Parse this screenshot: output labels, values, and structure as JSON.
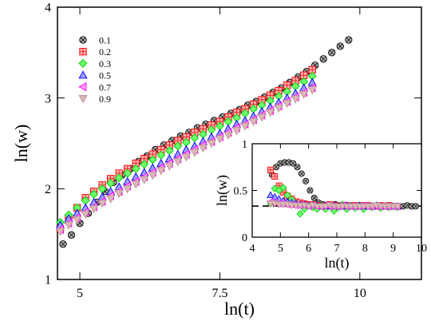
{
  "chart_data": [
    {
      "type": "scatter",
      "xlabel": "ln(t)",
      "ylabel": "ln(w)",
      "xlim": [
        4.6,
        11.1
      ],
      "ylim": [
        1.0,
        4.0
      ],
      "xticks": [
        5,
        7.5,
        10
      ],
      "xtick_labels": [
        "5",
        "7.5",
        "10"
      ],
      "yticks": [
        1,
        2,
        3,
        4
      ],
      "ytick_labels": [
        "1",
        "2",
        "3",
        "4"
      ],
      "grid": false,
      "legend_position": "top-left",
      "series": [
        {
          "name": "0.1",
          "marker": "circle-cross",
          "color": "#000000",
          "fill": "#b0b0b0",
          "x": [
            4.7,
            4.85,
            5.0,
            5.15,
            5.3,
            5.45,
            5.6,
            5.75,
            5.9,
            6.05,
            6.2,
            6.35,
            6.5,
            6.65,
            6.8,
            6.95,
            7.1,
            7.25,
            7.4,
            7.55,
            7.7,
            7.85,
            8.0,
            8.15,
            8.3,
            8.45,
            8.6,
            8.75,
            8.9,
            9.05,
            9.2,
            9.35,
            9.5,
            9.65,
            9.8
          ],
          "y": [
            1.39,
            1.49,
            1.62,
            1.73,
            1.85,
            1.97,
            2.07,
            2.15,
            2.22,
            2.3,
            2.36,
            2.43,
            2.48,
            2.53,
            2.58,
            2.62,
            2.67,
            2.71,
            2.75,
            2.79,
            2.83,
            2.87,
            2.92,
            2.96,
            3.01,
            3.06,
            3.11,
            3.17,
            3.23,
            3.29,
            3.36,
            3.43,
            3.5,
            3.57,
            3.64
          ]
        },
        {
          "name": "0.2",
          "marker": "square-cross",
          "color": "#ff0000",
          "fill": "#ffb0b0",
          "x": [
            4.65,
            4.8,
            4.95,
            5.1,
            5.25,
            5.4,
            5.55,
            5.7,
            5.85,
            6.0,
            6.15,
            6.3,
            6.45,
            6.6,
            6.75,
            6.9,
            7.05,
            7.2,
            7.35,
            7.5,
            7.65,
            7.8,
            7.95,
            8.1,
            8.25,
            8.4,
            8.55,
            8.7,
            8.85,
            9.0,
            9.15
          ],
          "y": [
            1.56,
            1.68,
            1.79,
            1.9,
            1.97,
            2.04,
            2.11,
            2.17,
            2.22,
            2.28,
            2.33,
            2.38,
            2.43,
            2.48,
            2.53,
            2.57,
            2.62,
            2.66,
            2.7,
            2.74,
            2.79,
            2.84,
            2.88,
            2.93,
            2.98,
            3.03,
            3.08,
            3.14,
            3.19,
            3.25,
            3.31
          ]
        },
        {
          "name": "0.3",
          "marker": "diamond",
          "color": "#00cc00",
          "fill": "#70ff70",
          "x": [
            4.65,
            4.8,
            4.95,
            5.1,
            5.25,
            5.4,
            5.55,
            5.7,
            5.85,
            6.0,
            6.15,
            6.3,
            6.45,
            6.6,
            6.75,
            6.9,
            7.05,
            7.2,
            7.35,
            7.5,
            7.65,
            7.8,
            7.95,
            8.1,
            8.25,
            8.4,
            8.55,
            8.7,
            8.85,
            9.0,
            9.15
          ],
          "y": [
            1.63,
            1.71,
            1.79,
            1.87,
            1.94,
            2.0,
            2.06,
            2.12,
            2.17,
            2.22,
            2.27,
            2.32,
            2.37,
            2.42,
            2.47,
            2.51,
            2.56,
            2.6,
            2.65,
            2.69,
            2.74,
            2.78,
            2.83,
            2.88,
            2.92,
            2.97,
            3.02,
            3.07,
            3.13,
            3.18,
            3.24
          ]
        },
        {
          "name": "0.5",
          "marker": "triangle-up",
          "color": "#0000ff",
          "fill": "#a0a0ff",
          "x": [
            4.65,
            4.8,
            4.95,
            5.1,
            5.25,
            5.4,
            5.55,
            5.7,
            5.85,
            6.0,
            6.15,
            6.3,
            6.45,
            6.6,
            6.75,
            6.9,
            7.05,
            7.2,
            7.35,
            7.5,
            7.65,
            7.8,
            7.95,
            8.1,
            8.25,
            8.4,
            8.55,
            8.7,
            8.85,
            9.0,
            9.15
          ],
          "y": [
            1.6,
            1.67,
            1.73,
            1.79,
            1.85,
            1.91,
            1.97,
            2.02,
            2.08,
            2.13,
            2.18,
            2.23,
            2.28,
            2.33,
            2.38,
            2.43,
            2.47,
            2.52,
            2.57,
            2.61,
            2.66,
            2.71,
            2.75,
            2.8,
            2.85,
            2.9,
            2.95,
            3.0,
            3.05,
            3.11,
            3.17
          ]
        },
        {
          "name": "0.7",
          "marker": "triangle-left",
          "color": "#ff00ff",
          "fill": "#ffa0ff",
          "x": [
            4.65,
            4.8,
            4.95,
            5.1,
            5.25,
            5.4,
            5.55,
            5.7,
            5.85,
            6.0,
            6.15,
            6.3,
            6.45,
            6.6,
            6.75,
            6.9,
            7.05,
            7.2,
            7.35,
            7.5,
            7.65,
            7.8,
            7.95,
            8.1,
            8.25,
            8.4,
            8.55,
            8.7,
            8.85,
            9.0,
            9.15
          ],
          "y": [
            1.55,
            1.62,
            1.68,
            1.74,
            1.8,
            1.86,
            1.92,
            1.97,
            2.03,
            2.08,
            2.13,
            2.18,
            2.23,
            2.28,
            2.33,
            2.38,
            2.43,
            2.48,
            2.52,
            2.57,
            2.62,
            2.67,
            2.71,
            2.76,
            2.81,
            2.86,
            2.91,
            2.96,
            3.01,
            3.06,
            3.11
          ]
        },
        {
          "name": "0.9",
          "marker": "triangle-down",
          "color": "#bc8f8f",
          "fill": "#deb8b8",
          "x": [
            4.65,
            4.8,
            4.95,
            5.1,
            5.25,
            5.4,
            5.55,
            5.7,
            5.85,
            6.0,
            6.15,
            6.3,
            6.45,
            6.6,
            6.75,
            6.9,
            7.05,
            7.2,
            7.35,
            7.5,
            7.65,
            7.8,
            7.95,
            8.1,
            8.25,
            8.4,
            8.55,
            8.7,
            8.85,
            9.0,
            9.15
          ],
          "y": [
            1.53,
            1.6,
            1.66,
            1.72,
            1.78,
            1.84,
            1.89,
            1.95,
            2.0,
            2.05,
            2.1,
            2.15,
            2.2,
            2.25,
            2.3,
            2.35,
            2.4,
            2.45,
            2.5,
            2.55,
            2.59,
            2.64,
            2.69,
            2.74,
            2.79,
            2.84,
            2.89,
            2.94,
            2.99,
            3.04,
            3.09
          ]
        }
      ]
    },
    {
      "type": "scatter",
      "inset": true,
      "xlabel": "ln(t)",
      "ylabel": "ln(w)",
      "xlim": [
        4.0,
        10.0
      ],
      "ylim": [
        0.0,
        1.0
      ],
      "xticks": [
        4,
        5,
        6,
        7,
        8,
        9,
        10
      ],
      "xtick_labels": [
        "4",
        "5",
        "6",
        "7",
        "8",
        "9",
        "10"
      ],
      "yticks": [
        0,
        0.5,
        1
      ],
      "ytick_labels": [
        "0",
        "0.5",
        "1"
      ],
      "reference_line": {
        "y": 0.333,
        "style": "dashed",
        "x": [
          4.0,
          10.0
        ]
      },
      "series": [
        {
          "name": "0.1",
          "marker": "circle-cross",
          "color": "#000000",
          "fill": "#b0b0b0",
          "x": [
            4.7,
            4.85,
            5.0,
            5.15,
            5.3,
            5.45,
            5.6,
            5.75,
            5.9,
            6.05,
            6.2,
            6.35,
            6.5,
            6.65,
            6.8,
            6.95,
            7.1,
            7.25,
            7.4,
            7.55,
            7.7,
            7.85,
            8.0,
            8.15,
            8.3,
            8.45,
            8.6,
            8.75,
            8.9,
            9.05,
            9.2,
            9.35,
            9.5,
            9.65,
            9.8
          ],
          "y": [
            0.67,
            0.75,
            0.79,
            0.8,
            0.8,
            0.79,
            0.75,
            0.68,
            0.6,
            0.5,
            0.42,
            0.37,
            0.35,
            0.34,
            0.34,
            0.35,
            0.34,
            0.33,
            0.34,
            0.34,
            0.33,
            0.34,
            0.33,
            0.34,
            0.33,
            0.34,
            0.33,
            0.33,
            0.34,
            0.33,
            0.33,
            0.33,
            0.34,
            0.33,
            0.33
          ]
        },
        {
          "name": "0.2",
          "marker": "square-cross",
          "color": "#ff0000",
          "fill": "#ffb0b0",
          "x": [
            4.65,
            4.8,
            4.95,
            5.1,
            5.25,
            5.4,
            5.55,
            5.7,
            5.85,
            6.0,
            6.15,
            6.3,
            6.45,
            6.6,
            6.75,
            6.9,
            7.05,
            7.2,
            7.35,
            7.5,
            7.65,
            7.8,
            7.95,
            8.1,
            8.25,
            8.4,
            8.55,
            8.7,
            8.85,
            9.0,
            9.15
          ],
          "y": [
            0.72,
            0.65,
            0.55,
            0.48,
            0.44,
            0.41,
            0.38,
            0.37,
            0.36,
            0.35,
            0.35,
            0.34,
            0.34,
            0.33,
            0.35,
            0.34,
            0.33,
            0.34,
            0.34,
            0.33,
            0.34,
            0.33,
            0.34,
            0.34,
            0.33,
            0.33,
            0.34,
            0.33,
            0.34,
            0.33,
            0.33
          ]
        },
        {
          "name": "0.3",
          "marker": "diamond",
          "color": "#00cc00",
          "fill": "#70ff70",
          "x": [
            4.65,
            4.8,
            4.95,
            5.1,
            5.25,
            5.4,
            5.55,
            5.7,
            5.85,
            6.0,
            6.15,
            6.3,
            6.45,
            6.6,
            6.75,
            6.9,
            7.05,
            7.2,
            7.35,
            7.5,
            7.65,
            7.8,
            7.95,
            8.1,
            8.25,
            8.4,
            8.55,
            8.7,
            8.85,
            9.0,
            9.15
          ],
          "y": [
            0.36,
            0.52,
            0.5,
            0.53,
            0.45,
            0.4,
            0.35,
            0.25,
            0.3,
            0.34,
            0.32,
            0.3,
            0.34,
            0.3,
            0.33,
            0.28,
            0.32,
            0.35,
            0.3,
            0.33,
            0.31,
            0.34,
            0.3,
            0.33,
            0.32,
            0.34,
            0.31,
            0.33,
            0.32,
            0.33,
            0.32
          ]
        },
        {
          "name": "0.5",
          "marker": "triangle-up",
          "color": "#0000ff",
          "fill": "#a0a0ff",
          "x": [
            4.65,
            4.8,
            4.95,
            5.1,
            5.25,
            5.4,
            5.55,
            5.7,
            5.85,
            6.0,
            6.15,
            6.3,
            6.45,
            6.6,
            6.75,
            6.9,
            7.05,
            7.2,
            7.35,
            7.5,
            7.65,
            7.8,
            7.95,
            8.1,
            8.25,
            8.4,
            8.55,
            8.7,
            8.85,
            9.0,
            9.15
          ],
          "y": [
            0.45,
            0.43,
            0.41,
            0.39,
            0.38,
            0.37,
            0.36,
            0.35,
            0.35,
            0.34,
            0.34,
            0.34,
            0.33,
            0.34,
            0.33,
            0.34,
            0.33,
            0.33,
            0.34,
            0.33,
            0.33,
            0.34,
            0.33,
            0.33,
            0.33,
            0.34,
            0.33,
            0.33,
            0.33,
            0.33,
            0.33
          ]
        },
        {
          "name": "0.7",
          "marker": "triangle-left",
          "color": "#ff00ff",
          "fill": "#ffa0ff",
          "x": [
            4.65,
            4.8,
            4.95,
            5.1,
            5.25,
            5.4,
            5.55,
            5.7,
            5.85,
            6.0,
            6.15,
            6.3,
            6.45,
            6.6,
            6.75,
            6.9,
            7.05,
            7.2,
            7.35,
            7.5,
            7.65,
            7.8,
            7.95,
            8.1,
            8.25,
            8.4,
            8.55,
            8.7,
            8.85,
            9.0,
            9.15
          ],
          "y": [
            0.38,
            0.37,
            0.36,
            0.36,
            0.35,
            0.35,
            0.34,
            0.34,
            0.34,
            0.33,
            0.34,
            0.33,
            0.33,
            0.34,
            0.33,
            0.33,
            0.33,
            0.34,
            0.33,
            0.33,
            0.33,
            0.33,
            0.34,
            0.33,
            0.33,
            0.33,
            0.33,
            0.33,
            0.33,
            0.33,
            0.33
          ]
        },
        {
          "name": "0.9",
          "marker": "triangle-down",
          "color": "#bc8f8f",
          "fill": "#deb8b8",
          "x": [
            4.65,
            4.8,
            4.95,
            5.1,
            5.25,
            5.4,
            5.55,
            5.7,
            5.85,
            6.0,
            6.15,
            6.3,
            6.45,
            6.6,
            6.75,
            6.9,
            7.05,
            7.2,
            7.35,
            7.5,
            7.65,
            7.8,
            7.95,
            8.1,
            8.25,
            8.4,
            8.55,
            8.7,
            8.85,
            9.0,
            9.15
          ],
          "y": [
            0.36,
            0.36,
            0.35,
            0.35,
            0.35,
            0.34,
            0.34,
            0.34,
            0.34,
            0.33,
            0.34,
            0.33,
            0.33,
            0.33,
            0.34,
            0.33,
            0.33,
            0.33,
            0.33,
            0.33,
            0.33,
            0.33,
            0.33,
            0.33,
            0.33,
            0.34,
            0.33,
            0.33,
            0.33,
            0.33,
            0.33
          ]
        }
      ]
    }
  ]
}
